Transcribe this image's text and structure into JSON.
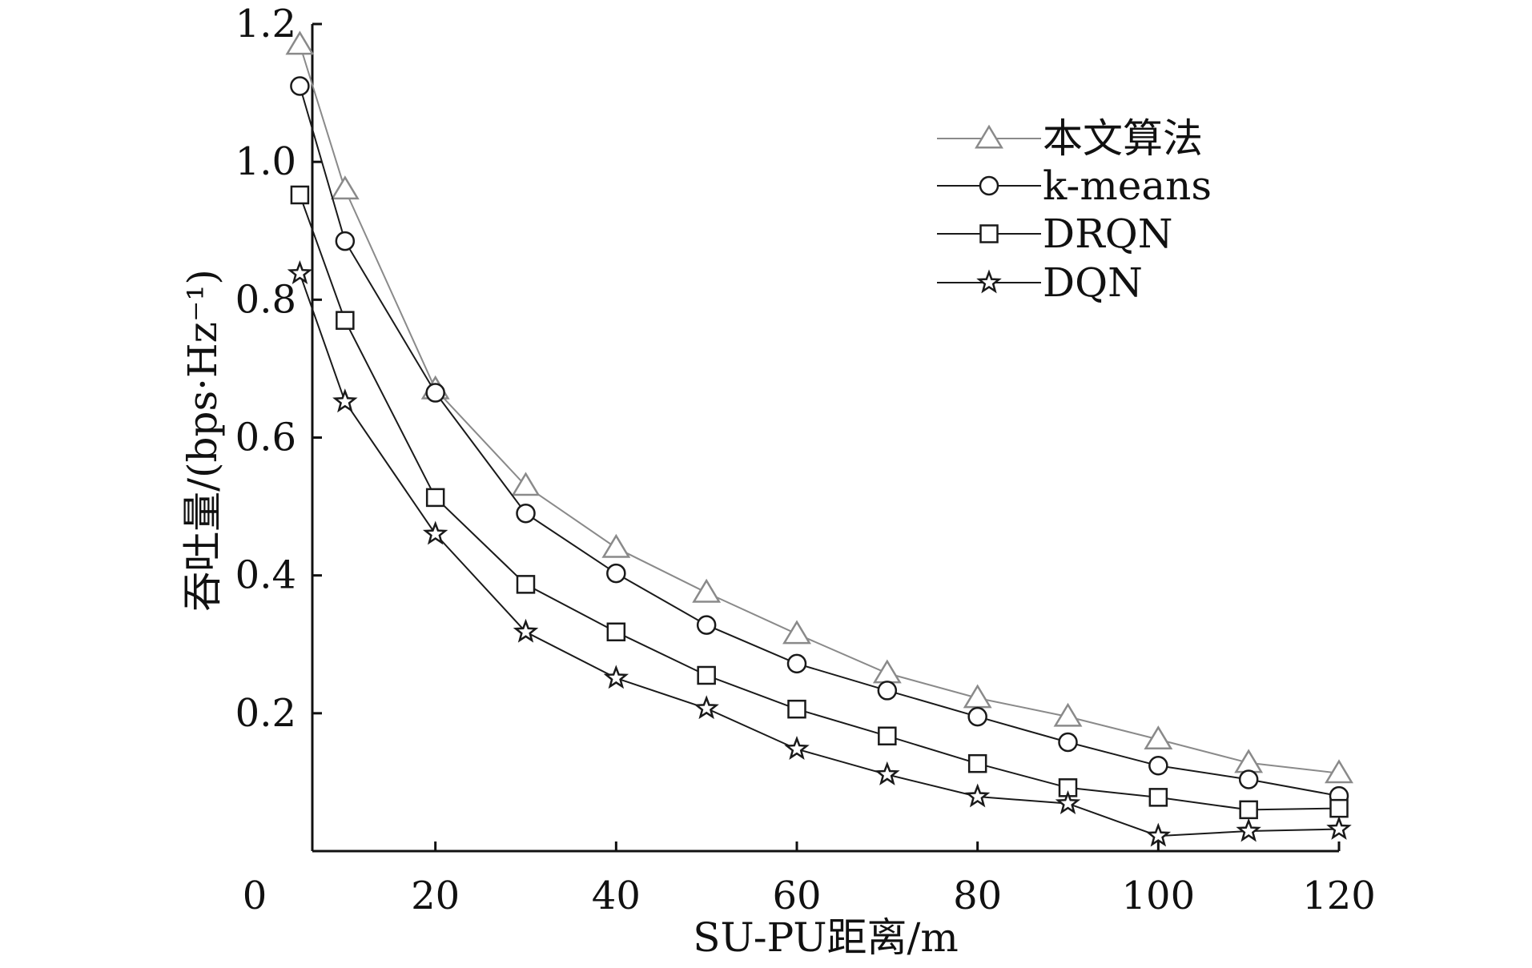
{
  "chart_data": {
    "type": "line",
    "title": "",
    "xlabel": "SU-PU距离/m",
    "ylabel": "吞吐量/(bps·Hz⁻¹)",
    "xlim": [
      0,
      120
    ],
    "ylim": [
      0,
      1.2
    ],
    "x_ticks": [
      {
        "value": 0,
        "label": "0"
      },
      {
        "value": 20,
        "label": "20"
      },
      {
        "value": 40,
        "label": "40"
      },
      {
        "value": 60,
        "label": "60"
      },
      {
        "value": 80,
        "label": "80"
      },
      {
        "value": 100,
        "label": "100"
      },
      {
        "value": 120,
        "label": "120"
      }
    ],
    "y_ticks": [
      {
        "value": 0.2,
        "label": "0.2"
      },
      {
        "value": 0.4,
        "label": "0.4"
      },
      {
        "value": 0.6,
        "label": "0.6"
      },
      {
        "value": 0.8,
        "label": "0.8"
      },
      {
        "value": 1.0,
        "label": "1.0"
      },
      {
        "value": 1.2,
        "label": "1.2"
      }
    ],
    "grid": false,
    "legend_position": "top-right",
    "x": [
      5,
      10,
      20,
      30,
      40,
      50,
      60,
      70,
      80,
      90,
      100,
      110,
      120
    ],
    "series": [
      {
        "name": "本文算法",
        "marker": "triangle",
        "color": "#8a8a8a",
        "values": [
          1.17,
          0.96,
          0.67,
          0.53,
          0.44,
          0.375,
          0.315,
          0.258,
          0.222,
          0.195,
          0.162,
          0.128,
          0.113
        ]
      },
      {
        "name": "k-means",
        "marker": "circle",
        "color": "#1a1a1a",
        "values": [
          1.11,
          0.885,
          0.665,
          0.49,
          0.403,
          0.328,
          0.272,
          0.233,
          0.195,
          0.158,
          0.124,
          0.104,
          0.08
        ]
      },
      {
        "name": "DRQN",
        "marker": "square",
        "color": "#1a1a1a",
        "values": [
          0.952,
          0.77,
          0.513,
          0.387,
          0.318,
          0.255,
          0.206,
          0.167,
          0.127,
          0.092,
          0.078,
          0.06,
          0.062
        ]
      },
      {
        "name": "DQN",
        "marker": "star",
        "color": "#1a1a1a",
        "values": [
          0.838,
          0.652,
          0.46,
          0.318,
          0.251,
          0.207,
          0.148,
          0.111,
          0.079,
          0.069,
          0.022,
          0.029,
          0.032
        ]
      }
    ]
  }
}
